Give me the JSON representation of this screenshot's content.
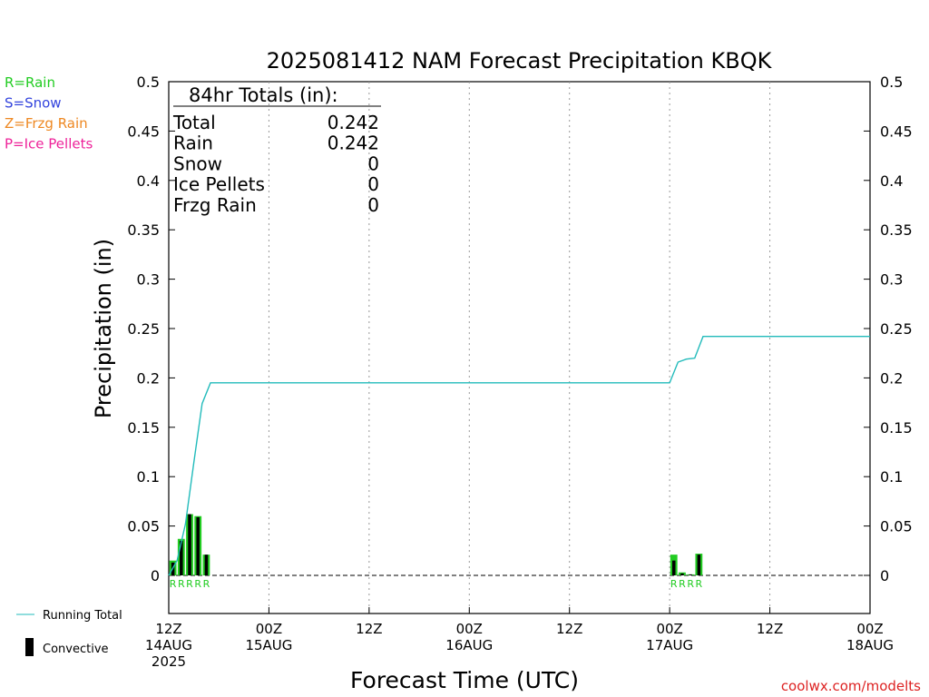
{
  "colors": {
    "rain": "#22cc22",
    "snow": "#3344dd",
    "frzg_rain": "#ee8822",
    "ice_pellets": "#ee2299",
    "running_total": "#22bbbb",
    "convective": "#000000",
    "watermark": "#dd2222"
  },
  "legend_types": [
    {
      "key": "rain",
      "label": "R=Rain"
    },
    {
      "key": "snow",
      "label": "S=Snow"
    },
    {
      "key": "frzg_rain",
      "label": "Z=Frzg Rain"
    },
    {
      "key": "ice_pellets",
      "label": "P=Ice Pellets"
    }
  ],
  "legend_bottom": {
    "running_total": "Running Total",
    "convective": "Convective"
  },
  "totals": {
    "header": "84hr Totals (in):",
    "rows": [
      {
        "label": "Total",
        "value": "0.242"
      },
      {
        "label": "Rain",
        "value": "0.242"
      },
      {
        "label": "Snow",
        "value": "0"
      },
      {
        "label": "Ice Pellets",
        "value": "0"
      },
      {
        "label": "Frzg Rain",
        "value": "0"
      }
    ]
  },
  "watermark": "coolwx.com/modelts",
  "chart_data": {
    "type": "bar",
    "title": "2025081412 NAM Forecast Precipitation KBQK",
    "xlabel": "Forecast Time (UTC)",
    "ylabel": "Precipitation (in)",
    "ylim": [
      -0.04,
      0.5
    ],
    "xlim_hours": [
      0,
      84
    ],
    "y_ticks": [
      0,
      0.05,
      0.1,
      0.15,
      0.2,
      0.25,
      0.3,
      0.35,
      0.4,
      0.45,
      0.5
    ],
    "y_tick_labels": [
      "0",
      "0.05",
      "0.1",
      "0.15",
      "0.2",
      "0.25",
      "0.3",
      "0.35",
      "0.4",
      "0.45",
      "0.5"
    ],
    "x_ticks": [
      {
        "hour": 0,
        "lines": [
          "12Z",
          "14AUG",
          "2025"
        ]
      },
      {
        "hour": 12,
        "lines": [
          "00Z",
          "15AUG"
        ]
      },
      {
        "hour": 24,
        "lines": [
          "12Z"
        ]
      },
      {
        "hour": 36,
        "lines": [
          "00Z",
          "16AUG"
        ]
      },
      {
        "hour": 48,
        "lines": [
          "12Z"
        ]
      },
      {
        "hour": 60,
        "lines": [
          "00Z",
          "17AUG"
        ]
      },
      {
        "hour": 72,
        "lines": [
          "12Z"
        ]
      },
      {
        "hour": 84,
        "lines": [
          "00Z",
          "18AUG"
        ]
      }
    ],
    "grid": "vertical dotted",
    "bars": [
      {
        "hour": 1,
        "total": 0.015,
        "convective": 0.013,
        "ptype": "R"
      },
      {
        "hour": 2,
        "total": 0.037,
        "convective": 0.035,
        "ptype": "R"
      },
      {
        "hour": 3,
        "total": 0.062,
        "convective": 0.062,
        "ptype": "R"
      },
      {
        "hour": 4,
        "total": 0.06,
        "convective": 0.059,
        "ptype": "R"
      },
      {
        "hour": 5,
        "total": 0.021,
        "convective": 0.021,
        "ptype": "R"
      },
      {
        "hour": 61,
        "total": 0.021,
        "convective": 0.015,
        "ptype": "R"
      },
      {
        "hour": 62,
        "total": 0.003,
        "convective": 0.002,
        "ptype": "R"
      },
      {
        "hour": 63,
        "total": 0.001,
        "convective": 0.001,
        "ptype": "R"
      },
      {
        "hour": 64,
        "total": 0.022,
        "convective": 0.021,
        "ptype": "R"
      }
    ],
    "running_total": [
      {
        "hour": 0,
        "value": 0
      },
      {
        "hour": 1,
        "value": 0.015
      },
      {
        "hour": 2,
        "value": 0.052
      },
      {
        "hour": 3,
        "value": 0.114
      },
      {
        "hour": 4,
        "value": 0.174
      },
      {
        "hour": 5,
        "value": 0.195
      },
      {
        "hour": 60,
        "value": 0.195
      },
      {
        "hour": 61,
        "value": 0.216
      },
      {
        "hour": 62,
        "value": 0.219
      },
      {
        "hour": 63,
        "value": 0.22
      },
      {
        "hour": 64,
        "value": 0.242
      },
      {
        "hour": 84,
        "value": 0.242
      }
    ]
  }
}
